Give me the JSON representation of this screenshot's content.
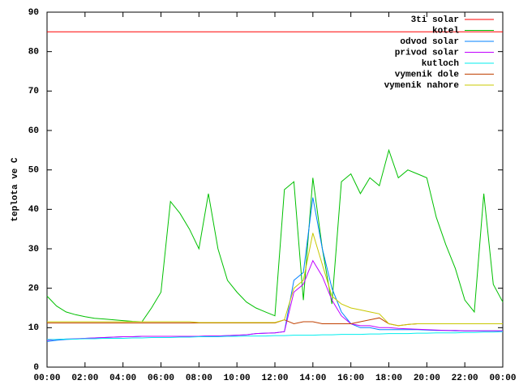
{
  "chart_data": {
    "type": "line",
    "y_label": "teplota ve C",
    "x": [
      0,
      0.5,
      1,
      1.5,
      2,
      2.5,
      3,
      3.5,
      4,
      4.5,
      5,
      5.5,
      6,
      6.5,
      7,
      7.5,
      8,
      8.5,
      9,
      9.5,
      10,
      10.5,
      11,
      11.5,
      12,
      12.5,
      13,
      13.5,
      14,
      14.5,
      15,
      15.5,
      16,
      16.5,
      17,
      17.5,
      18,
      18.5,
      19,
      19.5,
      20,
      20.5,
      21,
      21.5,
      22,
      22.5,
      23,
      23.5,
      24
    ],
    "xlim": [
      0,
      24
    ],
    "xticks": [
      {
        "value": 0,
        "label": "00:00"
      },
      {
        "value": 2,
        "label": "02:00"
      },
      {
        "value": 4,
        "label": "04:00"
      },
      {
        "value": 6,
        "label": "06:00"
      },
      {
        "value": 8,
        "label": "08:00"
      },
      {
        "value": 10,
        "label": "10:00"
      },
      {
        "value": 12,
        "label": "12:00"
      },
      {
        "value": 14,
        "label": "14:00"
      },
      {
        "value": 16,
        "label": "16:00"
      },
      {
        "value": 18,
        "label": "18:00"
      },
      {
        "value": 20,
        "label": "20:00"
      },
      {
        "value": 22,
        "label": "22:00"
      },
      {
        "value": 24,
        "label": "00:00"
      }
    ],
    "ylim": [
      0,
      90
    ],
    "yticks": [
      0,
      10,
      20,
      30,
      40,
      50,
      60,
      70,
      80,
      90
    ],
    "grid": false,
    "legend": "top-right",
    "series": [
      {
        "name": "3ti solar",
        "color": "#ff0000",
        "values": [
          85,
          85,
          85,
          85,
          85,
          85,
          85,
          85,
          85,
          85,
          85,
          85,
          85,
          85,
          85,
          85,
          85,
          85,
          85,
          85,
          85,
          85,
          85,
          85,
          85,
          85,
          85,
          85,
          85,
          85,
          85,
          85,
          85,
          85,
          85,
          85,
          85,
          85,
          85,
          85,
          85,
          85,
          85,
          85,
          85,
          85,
          85,
          85,
          85
        ]
      },
      {
        "name": "kotel",
        "color": "#00c000",
        "values": [
          18,
          15.5,
          14,
          13.3,
          12.8,
          12.4,
          12.2,
          12,
          11.8,
          11.6,
          11.5,
          15,
          19,
          42,
          39,
          35,
          30,
          44,
          30,
          22,
          19,
          16.5,
          15,
          14,
          13,
          45,
          47,
          17,
          48,
          30,
          16,
          47,
          49,
          44,
          48,
          46,
          55,
          48,
          50,
          49,
          48,
          38,
          31,
          25,
          17,
          14,
          44,
          21,
          16.5
        ]
      },
      {
        "name": "odvod solar",
        "color": "#0080ff",
        "values": [
          6.5,
          6.8,
          7,
          7.1,
          7.3,
          7.4,
          7.5,
          7.6,
          7.7,
          7.7,
          7.8,
          7.8,
          7.8,
          7.8,
          7.8,
          7.8,
          7.8,
          7.9,
          7.9,
          8,
          8.1,
          8.2,
          8.5,
          8.6,
          8.7,
          9,
          22,
          24,
          43,
          30,
          20,
          14,
          11,
          10,
          10,
          9.5,
          9.5,
          9.5,
          9.5,
          9.5,
          9.4,
          9.3,
          9.3,
          9.2,
          9.2,
          9.2,
          9.2,
          9.2,
          9.2
        ]
      },
      {
        "name": "privod solar",
        "color": "#c000ff",
        "values": [
          6.8,
          7,
          7.1,
          7.2,
          7.3,
          7.4,
          7.5,
          7.6,
          7.7,
          7.7,
          7.8,
          7.8,
          7.8,
          7.8,
          7.8,
          7.8,
          7.8,
          7.9,
          7.9,
          8,
          8.1,
          8.2,
          8.5,
          8.6,
          8.7,
          9,
          19,
          21,
          27,
          23,
          17,
          13,
          11,
          10.5,
          10.5,
          10,
          10,
          9.8,
          9.7,
          9.6,
          9.5,
          9.4,
          9.3,
          9.3,
          9.2,
          9.2,
          9.2,
          9.2,
          9.2
        ]
      },
      {
        "name": "kutloch",
        "color": "#00eeee",
        "values": [
          7,
          7,
          7.1,
          7.1,
          7.2,
          7.2,
          7.3,
          7.3,
          7.3,
          7.4,
          7.4,
          7.5,
          7.5,
          7.5,
          7.6,
          7.6,
          7.7,
          7.7,
          7.7,
          7.8,
          7.8,
          7.9,
          7.9,
          7.9,
          8,
          8,
          8.1,
          8.1,
          8.1,
          8.2,
          8.2,
          8.3,
          8.3,
          8.3,
          8.4,
          8.4,
          8.5,
          8.5,
          8.5,
          8.6,
          8.6,
          8.7,
          8.7,
          8.7,
          8.8,
          8.8,
          8.9,
          8.9,
          9
        ]
      },
      {
        "name": "vymenik dole",
        "color": "#c04000",
        "values": [
          11.2,
          11.2,
          11.2,
          11.2,
          11.2,
          11.2,
          11.2,
          11.2,
          11.2,
          11.2,
          11.2,
          11.2,
          11.2,
          11.2,
          11.2,
          11.2,
          11.2,
          11.2,
          11.2,
          11.2,
          11.2,
          11.2,
          11.2,
          11.2,
          11.2,
          12,
          11,
          11.5,
          11.5,
          11,
          11,
          11,
          11,
          11.5,
          12,
          12.5,
          11,
          10.5,
          10.8,
          11,
          11,
          11,
          11,
          11,
          11,
          11,
          11,
          11,
          11
        ]
      },
      {
        "name": "vymenik nahore",
        "color": "#c8c800",
        "values": [
          11.5,
          11.5,
          11.5,
          11.5,
          11.5,
          11.5,
          11.5,
          11.5,
          11.5,
          11.5,
          11.5,
          11.5,
          11.5,
          11.5,
          11.5,
          11.5,
          11.3,
          11.3,
          11.3,
          11.3,
          11.3,
          11.3,
          11.3,
          11.3,
          11.3,
          12,
          20,
          22,
          34,
          26,
          18,
          16,
          15,
          14.5,
          14,
          13.5,
          11,
          10.5,
          10.8,
          11,
          11,
          11,
          11,
          11,
          11,
          11,
          11,
          11,
          11
        ]
      }
    ]
  }
}
